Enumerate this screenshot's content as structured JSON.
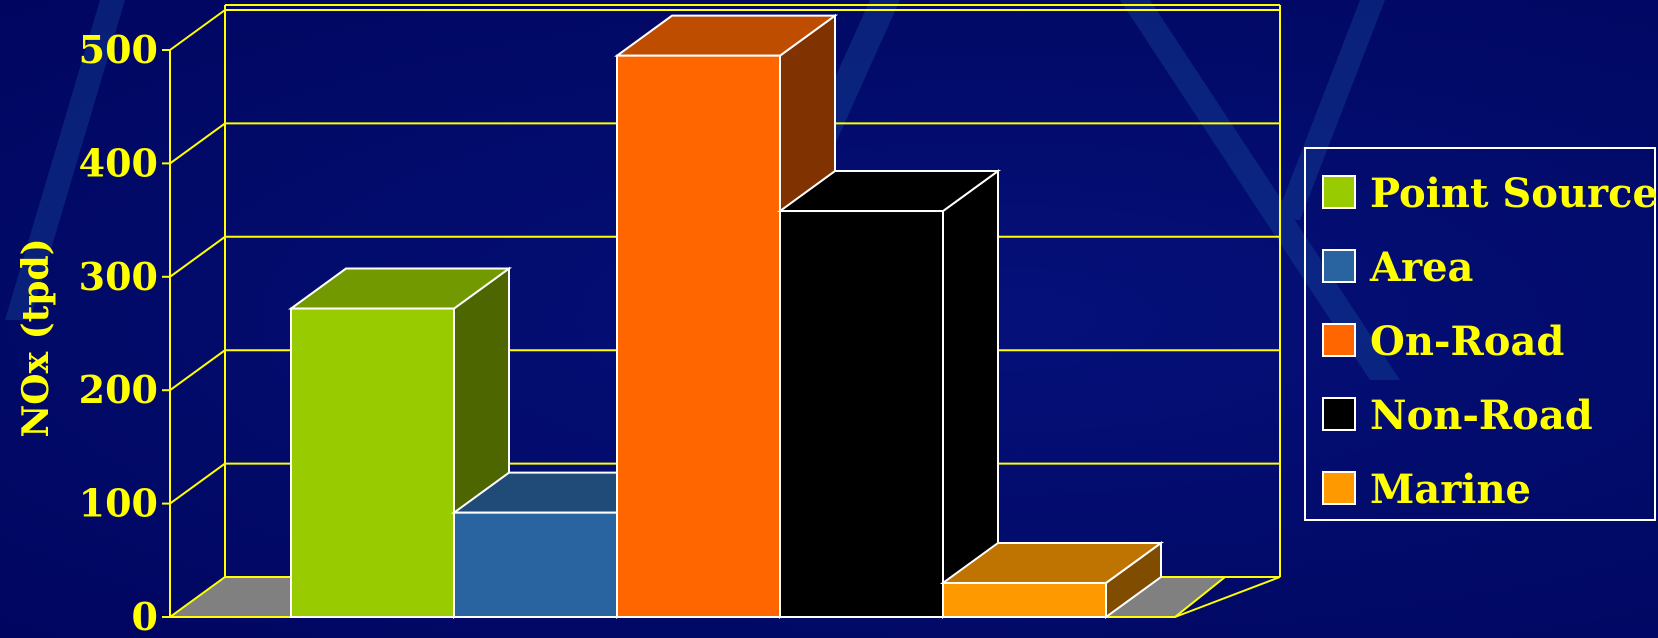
{
  "chart_data": {
    "type": "bar",
    "title": "",
    "xlabel": "",
    "ylabel": "NOx (tpd)",
    "ylim": [
      0,
      500
    ],
    "yticks": [
      0,
      100,
      200,
      300,
      400,
      500
    ],
    "grid": true,
    "legend_position": "right",
    "series": [
      {
        "name": "Point Source",
        "value": 272,
        "color": "#99cc00"
      },
      {
        "name": "Area",
        "value": 92,
        "color": "#2a64a0"
      },
      {
        "name": "On-Road",
        "value": 495,
        "color": "#ff6600"
      },
      {
        "name": "Non-Road",
        "value": 358,
        "color": "#000000"
      },
      {
        "name": "Marine",
        "value": 30,
        "color": "#ff9900"
      }
    ]
  },
  "colors": {
    "background": "#000a66",
    "grid": "#ffff00",
    "text": "#ffff00",
    "floor": "#808080",
    "edge": "#ffffff"
  }
}
